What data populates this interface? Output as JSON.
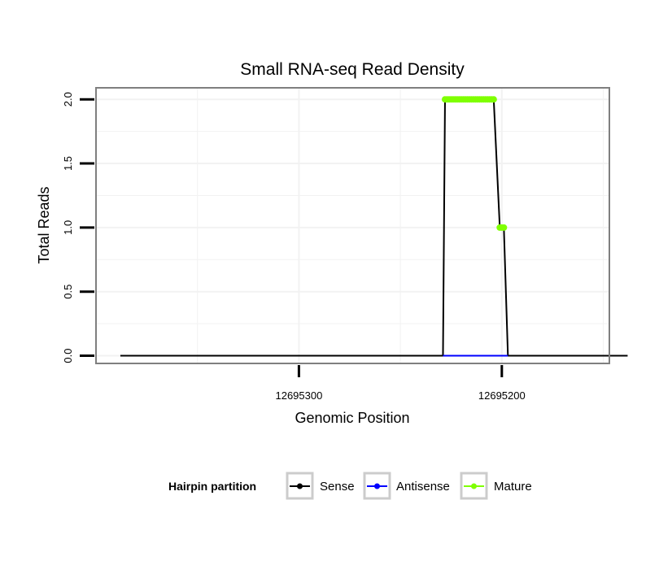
{
  "chart_data": {
    "type": "line",
    "title": "Small RNA-seq Read Density",
    "xlabel": "Genomic Position",
    "ylabel": "Total Reads",
    "x_reversed": true,
    "xlim": [
      12695400,
      12695147
    ],
    "ylim": [
      -0.06,
      2.09
    ],
    "x_ticks": [
      12695300,
      12695200
    ],
    "x_tick_labels": [
      "12695300",
      "12695200"
    ],
    "y_ticks": [
      0,
      0.5,
      1,
      1.5,
      2
    ],
    "y_tick_labels": [
      "0.0",
      "0.5",
      "1.0",
      "1.5",
      "2.0"
    ],
    "grid": true,
    "legend": {
      "title": "Hairpin partition",
      "position": "bottom",
      "entries": [
        {
          "name": "Sense",
          "color": "#000000"
        },
        {
          "name": "Antisense",
          "color": "#0000ff"
        },
        {
          "name": "Mature",
          "color": "#7fff00"
        }
      ]
    },
    "series": [
      {
        "name": "Sense",
        "color": "#000000",
        "style": "line",
        "x": [
          12695388,
          12695229,
          12695228,
          12695204,
          12695201,
          12695200,
          12695199,
          12695197,
          12695138
        ],
        "y": [
          0,
          0,
          2,
          2,
          1,
          1,
          1,
          0,
          0
        ]
      },
      {
        "name": "Antisense",
        "color": "#0000ff",
        "style": "line",
        "x": [
          12695229,
          12695197
        ],
        "y": [
          0,
          0
        ]
      },
      {
        "name": "Mature",
        "color": "#7fff00",
        "style": "points",
        "x": [
          12695228,
          12695227,
          12695226,
          12695225,
          12695224,
          12695223,
          12695222,
          12695221,
          12695220,
          12695219,
          12695218,
          12695217,
          12695216,
          12695215,
          12695214,
          12695213,
          12695212,
          12695211,
          12695210,
          12695209,
          12695208,
          12695207,
          12695206,
          12695205,
          12695204,
          12695201,
          12695200,
          12695199
        ],
        "y": [
          2,
          2,
          2,
          2,
          2,
          2,
          2,
          2,
          2,
          2,
          2,
          2,
          2,
          2,
          2,
          2,
          2,
          2,
          2,
          2,
          2,
          2,
          2,
          2,
          2,
          1,
          1,
          1
        ]
      }
    ]
  }
}
